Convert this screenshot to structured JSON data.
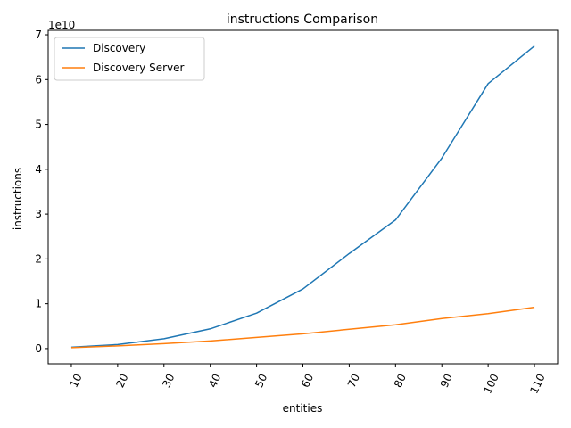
{
  "chart_data": {
    "type": "line",
    "title": "instructions Comparison",
    "xlabel": "entities",
    "ylabel": "instructions",
    "y_multiplier_label": "1e10",
    "x": [
      10,
      20,
      30,
      40,
      50,
      60,
      70,
      80,
      90,
      100,
      110
    ],
    "x_tick_labels": [
      "10",
      "20",
      "30",
      "40",
      "50",
      "60",
      "70",
      "80",
      "90",
      "100",
      "110"
    ],
    "y_ticks": [
      0,
      1,
      2,
      3,
      4,
      5,
      6,
      7
    ],
    "y_tick_labels": [
      "0",
      "1",
      "2",
      "3",
      "4",
      "5",
      "6",
      "7"
    ],
    "ylim": [
      -0.34,
      7.1
    ],
    "y_unit_scale": 10000000000,
    "series": [
      {
        "name": "Discovery",
        "color": "#1f77b4",
        "values": [
          0.03,
          0.09,
          0.22,
          0.44,
          0.79,
          1.33,
          2.12,
          2.87,
          4.25,
          5.91,
          6.75
        ]
      },
      {
        "name": "Discovery Server",
        "color": "#ff7f0e",
        "values": [
          0.02,
          0.06,
          0.11,
          0.17,
          0.25,
          0.33,
          0.43,
          0.53,
          0.67,
          0.78,
          0.92
        ]
      }
    ],
    "legend_position": "upper-left",
    "grid": false
  }
}
